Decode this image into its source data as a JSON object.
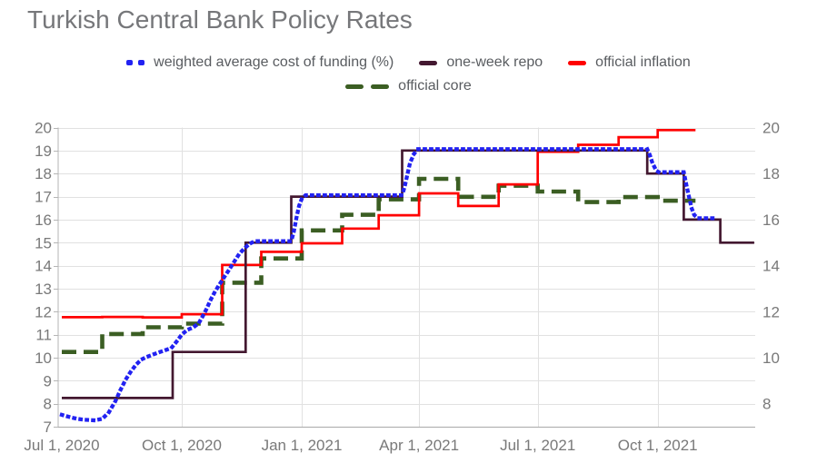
{
  "page": {
    "title": "Turkish Central Bank Policy Rates"
  },
  "chart_data": {
    "type": "line",
    "title": "Turkish Central Bank Policy Rates",
    "background": "#ffffff",
    "grid": true,
    "legend_position": "top-center",
    "x_axis": {
      "unit": "days since Jul 1, 2020",
      "domain_days": [
        0,
        535
      ],
      "tick_days": [
        0,
        92,
        184,
        274,
        365,
        457
      ],
      "tick_labels": [
        "Jul 1, 2020",
        "Oct 1, 2020",
        "Jan 1, 2021",
        "Apr 1, 2021",
        "Jul 1, 2021",
        "Oct 1, 2021"
      ]
    },
    "y_axis": {
      "min": 7,
      "max": 20,
      "left_ticks": [
        20,
        19,
        18,
        17,
        16,
        15,
        14,
        13,
        12,
        11,
        10,
        9,
        8,
        7
      ],
      "right_ticks": [
        20,
        18,
        16,
        14,
        12,
        10,
        8
      ]
    },
    "series": [
      {
        "name": "weighted average cost of funding (%)",
        "color": "#2222f2",
        "style": "dotted",
        "interpolation": "linear",
        "points": [
          [
            0,
            7.52
          ],
          [
            6,
            7.42
          ],
          [
            12,
            7.34
          ],
          [
            18,
            7.3
          ],
          [
            25,
            7.28
          ],
          [
            31,
            7.34
          ],
          [
            36,
            7.62
          ],
          [
            41,
            8.1
          ],
          [
            45,
            8.6
          ],
          [
            49,
            9.05
          ],
          [
            53,
            9.4
          ],
          [
            57,
            9.7
          ],
          [
            61,
            9.92
          ],
          [
            66,
            10.05
          ],
          [
            72,
            10.18
          ],
          [
            78,
            10.3
          ],
          [
            84,
            10.42
          ],
          [
            88,
            10.7
          ],
          [
            92,
            11.0
          ],
          [
            96,
            11.2
          ],
          [
            101,
            11.32
          ],
          [
            105,
            11.5
          ],
          [
            108,
            11.8
          ],
          [
            111,
            12.12
          ],
          [
            114,
            12.5
          ],
          [
            117,
            12.82
          ],
          [
            120,
            13.1
          ],
          [
            124,
            13.45
          ],
          [
            128,
            13.8
          ],
          [
            132,
            14.15
          ],
          [
            136,
            14.5
          ],
          [
            140,
            14.75
          ],
          [
            144,
            14.95
          ],
          [
            148,
            15.06
          ],
          [
            176,
            15.06
          ],
          [
            178,
            15.5
          ],
          [
            180,
            16.1
          ],
          [
            182,
            16.6
          ],
          [
            184,
            16.9
          ],
          [
            187,
            17.06
          ],
          [
            261,
            17.06
          ],
          [
            263,
            17.45
          ],
          [
            265,
            17.95
          ],
          [
            267,
            18.45
          ],
          [
            270,
            18.85
          ],
          [
            273,
            19.06
          ],
          [
            449,
            19.06
          ],
          [
            451,
            18.8
          ],
          [
            453,
            18.45
          ],
          [
            456,
            18.12
          ],
          [
            458,
            18.06
          ],
          [
            477,
            18.06
          ],
          [
            479,
            17.5
          ],
          [
            481,
            17.0
          ],
          [
            483,
            16.5
          ],
          [
            485,
            16.2
          ],
          [
            488,
            16.06
          ],
          [
            503,
            16.06
          ]
        ]
      },
      {
        "name": "one-week repo",
        "color": "#431830",
        "style": "solid",
        "interpolation": "step",
        "points": [
          [
            0,
            8.25
          ],
          [
            85,
            10.25
          ],
          [
            141,
            15
          ],
          [
            176,
            17
          ],
          [
            261,
            19
          ],
          [
            449,
            18
          ],
          [
            477,
            16
          ],
          [
            505,
            15
          ],
          [
            531,
            15
          ]
        ]
      },
      {
        "name": "official inflation",
        "color": "#ff0000",
        "style": "solid",
        "interpolation": "step",
        "points": [
          [
            0,
            11.76
          ],
          [
            31,
            11.77
          ],
          [
            62,
            11.75
          ],
          [
            92,
            11.89
          ],
          [
            123,
            14.03
          ],
          [
            153,
            14.6
          ],
          [
            184,
            14.97
          ],
          [
            215,
            15.61
          ],
          [
            243,
            16.19
          ],
          [
            274,
            17.14
          ],
          [
            304,
            16.59
          ],
          [
            335,
            17.53
          ],
          [
            365,
            18.95
          ],
          [
            396,
            19.25
          ],
          [
            427,
            19.58
          ],
          [
            457,
            19.89
          ],
          [
            486,
            19.89
          ]
        ]
      },
      {
        "name": "official core",
        "color": "#3b5e23",
        "style": "dashed",
        "interpolation": "step",
        "points": [
          [
            0,
            10.25
          ],
          [
            31,
            11.03
          ],
          [
            62,
            11.32
          ],
          [
            92,
            11.48
          ],
          [
            123,
            13.26
          ],
          [
            153,
            14.31
          ],
          [
            184,
            15.53
          ],
          [
            215,
            16.21
          ],
          [
            243,
            16.88
          ],
          [
            274,
            17.77
          ],
          [
            304,
            16.99
          ],
          [
            335,
            17.47
          ],
          [
            365,
            17.22
          ],
          [
            396,
            16.76
          ],
          [
            427,
            16.98
          ],
          [
            457,
            16.82
          ],
          [
            486,
            16.82
          ]
        ]
      }
    ]
  }
}
